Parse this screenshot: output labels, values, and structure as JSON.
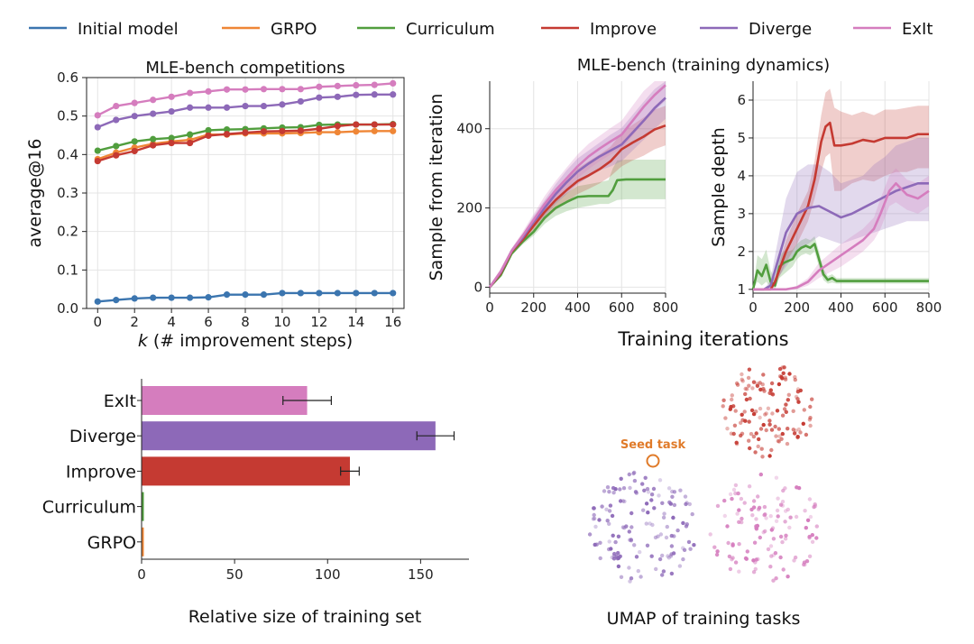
{
  "colors": {
    "initial": "#3b75af",
    "grpo": "#ef8636",
    "curriculum": "#519e3e",
    "improve": "#c53a32",
    "diverge": "#8d69b8",
    "exit": "#d57dbe"
  },
  "legend": [
    "Initial model",
    "GRPO",
    "Curriculum",
    "Improve",
    "Diverge",
    "ExIt"
  ],
  "chart_data": [
    {
      "type": "line",
      "title": "MLE-bench competitions",
      "xlabel": "k (# improvement steps)",
      "ylabel": "average@16",
      "xlim": [
        -0.6,
        16.6
      ],
      "ylim": [
        0.0,
        0.6
      ],
      "xticks": [
        "0",
        "2",
        "4",
        "6",
        "8",
        "10",
        "12",
        "14",
        "16"
      ],
      "yticks": [
        "0.0",
        "0.1",
        "0.2",
        "0.3",
        "0.4",
        "0.5",
        "0.6"
      ],
      "grid": true,
      "x": [
        0,
        1,
        2,
        3,
        4,
        5,
        6,
        7,
        8,
        9,
        10,
        11,
        12,
        13,
        14,
        15,
        16
      ],
      "series": [
        {
          "name": "Initial model",
          "key": "initial",
          "values": [
            0.018,
            0.022,
            0.026,
            0.028,
            0.028,
            0.028,
            0.029,
            0.036,
            0.036,
            0.036,
            0.04,
            0.04,
            0.04,
            0.04,
            0.04,
            0.04,
            0.04
          ]
        },
        {
          "name": "GRPO",
          "key": "grpo",
          "values": [
            0.388,
            0.405,
            0.418,
            0.428,
            0.434,
            0.438,
            0.452,
            0.452,
            0.455,
            0.455,
            0.455,
            0.456,
            0.458,
            0.458,
            0.46,
            0.461,
            0.461
          ]
        },
        {
          "name": "Curriculum",
          "key": "curriculum",
          "values": [
            0.41,
            0.422,
            0.434,
            0.44,
            0.443,
            0.452,
            0.463,
            0.465,
            0.466,
            0.468,
            0.47,
            0.471,
            0.477,
            0.478,
            0.478,
            0.478,
            0.479
          ]
        },
        {
          "name": "Improve",
          "key": "improve",
          "values": [
            0.383,
            0.398,
            0.409,
            0.424,
            0.43,
            0.43,
            0.449,
            0.453,
            0.457,
            0.46,
            0.461,
            0.462,
            0.467,
            0.474,
            0.478,
            0.478,
            0.478
          ]
        },
        {
          "name": "Diverge",
          "key": "diverge",
          "values": [
            0.471,
            0.49,
            0.5,
            0.506,
            0.512,
            0.522,
            0.522,
            0.522,
            0.526,
            0.526,
            0.53,
            0.538,
            0.548,
            0.55,
            0.555,
            0.556,
            0.556
          ]
        },
        {
          "name": "ExIt",
          "key": "exit",
          "values": [
            0.502,
            0.526,
            0.534,
            0.542,
            0.55,
            0.56,
            0.564,
            0.569,
            0.569,
            0.57,
            0.57,
            0.57,
            0.576,
            0.578,
            0.58,
            0.581,
            0.585
          ]
        }
      ]
    },
    {
      "type": "line",
      "title": "MLE-bench (training dynamics)",
      "xlabel": "Training iterations",
      "ylabel": "Sample from iteration",
      "xlim": [
        0,
        800
      ],
      "ylim": [
        -15,
        520
      ],
      "xticks": [
        0,
        200,
        400,
        600,
        800
      ],
      "yticks": [
        0,
        200,
        400
      ],
      "grid": true,
      "series": [
        {
          "name": "Curriculum",
          "key": "curriculum",
          "x": [
            0,
            50,
            100,
            150,
            200,
            250,
            300,
            350,
            400,
            450,
            500,
            540,
            560,
            580,
            620,
            700,
            800
          ],
          "y": [
            0,
            30,
            85,
            115,
            140,
            175,
            200,
            215,
            228,
            230,
            230,
            230,
            245,
            270,
            272,
            272,
            272
          ],
          "lo": [
            0,
            28,
            80,
            108,
            130,
            160,
            180,
            192,
            200,
            205,
            210,
            210,
            215,
            220,
            222,
            222,
            222
          ],
          "hi": [
            0,
            32,
            90,
            122,
            150,
            190,
            220,
            238,
            255,
            260,
            265,
            270,
            300,
            320,
            322,
            322,
            322
          ]
        },
        {
          "name": "Improve",
          "key": "improve",
          "x": [
            0,
            50,
            100,
            150,
            200,
            250,
            300,
            350,
            400,
            450,
            500,
            550,
            600,
            650,
            700,
            750,
            800
          ],
          "y": [
            0,
            35,
            90,
            120,
            155,
            190,
            220,
            245,
            268,
            282,
            298,
            318,
            348,
            365,
            380,
            398,
            408
          ],
          "lo": [
            0,
            32,
            84,
            110,
            140,
            170,
            195,
            215,
            235,
            248,
            262,
            280,
            305,
            320,
            332,
            348,
            358
          ],
          "hi": [
            0,
            38,
            96,
            130,
            170,
            210,
            245,
            275,
            300,
            318,
            335,
            355,
            390,
            410,
            428,
            448,
            458
          ]
        },
        {
          "name": "Diverge",
          "key": "diverge",
          "x": [
            0,
            50,
            100,
            150,
            200,
            250,
            300,
            350,
            400,
            450,
            500,
            550,
            600,
            650,
            700,
            750,
            800
          ],
          "y": [
            0,
            38,
            92,
            125,
            165,
            200,
            235,
            265,
            292,
            312,
            330,
            345,
            360,
            390,
            420,
            452,
            478
          ],
          "lo": [
            0,
            34,
            86,
            115,
            150,
            180,
            210,
            235,
            260,
            278,
            295,
            305,
            318,
            345,
            372,
            400,
            425
          ],
          "hi": [
            0,
            42,
            98,
            135,
            180,
            220,
            260,
            295,
            325,
            345,
            365,
            385,
            402,
            435,
            468,
            500,
            520
          ]
        },
        {
          "name": "ExIt",
          "key": "exit",
          "x": [
            0,
            50,
            100,
            150,
            200,
            250,
            300,
            350,
            400,
            450,
            500,
            550,
            600,
            650,
            700,
            750,
            800
          ],
          "y": [
            0,
            40,
            92,
            130,
            170,
            210,
            245,
            275,
            305,
            330,
            350,
            368,
            385,
            420,
            455,
            485,
            510
          ],
          "lo": [
            0,
            36,
            86,
            120,
            155,
            190,
            222,
            248,
            275,
            298,
            318,
            335,
            350,
            382,
            415,
            445,
            470
          ],
          "hi": [
            0,
            44,
            98,
            140,
            185,
            230,
            268,
            302,
            335,
            362,
            382,
            402,
            420,
            458,
            495,
            520,
            520
          ]
        }
      ]
    },
    {
      "type": "line",
      "title": "",
      "xlabel": "Training iterations",
      "ylabel": "Sample depth",
      "xlim": [
        0,
        800
      ],
      "ylim": [
        0.9,
        6.5
      ],
      "xticks": [
        0,
        200,
        400,
        600,
        800
      ],
      "yticks": [
        1,
        2,
        3,
        4,
        5,
        6
      ],
      "grid": true,
      "series": [
        {
          "name": "Curriculum",
          "key": "curriculum",
          "x": [
            0,
            20,
            40,
            60,
            80,
            100,
            120,
            140,
            160,
            180,
            200,
            220,
            240,
            260,
            280,
            300,
            320,
            340,
            360,
            380,
            400,
            500,
            600,
            700,
            800
          ],
          "y": [
            1.0,
            1.5,
            1.35,
            1.65,
            1.2,
            1.1,
            1.6,
            1.7,
            1.75,
            1.8,
            2.0,
            2.1,
            2.15,
            2.1,
            2.2,
            1.8,
            1.4,
            1.25,
            1.3,
            1.22,
            1.22,
            1.22,
            1.22,
            1.22,
            1.22
          ],
          "lo": [
            1.0,
            1.2,
            1.1,
            1.2,
            1.05,
            1.0,
            1.3,
            1.4,
            1.5,
            1.6,
            1.8,
            1.9,
            1.95,
            1.9,
            2.0,
            1.6,
            1.25,
            1.15,
            1.18,
            1.15,
            1.15,
            1.15,
            1.15,
            1.15,
            1.15
          ],
          "hi": [
            1.0,
            1.9,
            1.8,
            2.05,
            1.5,
            1.3,
            1.9,
            2.0,
            2.0,
            2.05,
            2.2,
            2.3,
            2.35,
            2.3,
            2.4,
            2.0,
            1.55,
            1.35,
            1.4,
            1.3,
            1.3,
            1.3,
            1.3,
            1.3,
            1.3
          ]
        },
        {
          "name": "Improve",
          "key": "improve",
          "x": [
            0,
            50,
            80,
            100,
            150,
            200,
            250,
            280,
            310,
            330,
            350,
            370,
            400,
            450,
            500,
            550,
            600,
            650,
            700,
            750,
            800
          ],
          "y": [
            1.0,
            1.0,
            1.0,
            1.2,
            2.0,
            2.6,
            3.2,
            3.9,
            4.9,
            5.3,
            5.4,
            4.8,
            4.8,
            4.85,
            4.95,
            4.9,
            5.0,
            5.0,
            5.0,
            5.1,
            5.1
          ],
          "lo": [
            1.0,
            1.0,
            1.0,
            1.1,
            1.7,
            2.2,
            2.8,
            3.4,
            4.1,
            4.5,
            4.6,
            3.6,
            3.6,
            3.8,
            3.9,
            3.85,
            4.0,
            4.1,
            4.1,
            4.2,
            4.2
          ],
          "hi": [
            1.0,
            1.0,
            1.0,
            1.3,
            2.3,
            3.0,
            3.6,
            4.4,
            5.6,
            6.2,
            6.3,
            5.8,
            5.7,
            5.6,
            5.7,
            5.6,
            5.75,
            5.75,
            5.8,
            5.85,
            5.85
          ]
        },
        {
          "name": "Diverge",
          "key": "diverge",
          "x": [
            0,
            50,
            80,
            100,
            150,
            200,
            250,
            300,
            350,
            400,
            450,
            500,
            550,
            600,
            650,
            700,
            750,
            800
          ],
          "y": [
            1.0,
            1.0,
            1.1,
            1.5,
            2.5,
            3.0,
            3.15,
            3.2,
            3.05,
            2.9,
            3.0,
            3.15,
            3.3,
            3.45,
            3.6,
            3.7,
            3.8,
            3.8
          ],
          "lo": [
            1.0,
            1.0,
            1.0,
            1.2,
            1.6,
            2.0,
            2.2,
            2.4,
            2.3,
            2.2,
            2.3,
            2.4,
            2.5,
            2.6,
            2.7,
            2.8,
            2.8,
            2.8
          ],
          "hi": [
            1.0,
            1.0,
            1.25,
            1.9,
            3.4,
            4.1,
            4.3,
            4.3,
            4.1,
            3.8,
            3.9,
            4.0,
            4.3,
            4.5,
            4.8,
            4.9,
            5.0,
            5.0
          ]
        },
        {
          "name": "ExIt",
          "key": "exit",
          "x": [
            0,
            100,
            150,
            200,
            250,
            300,
            350,
            400,
            450,
            500,
            550,
            580,
            600,
            620,
            650,
            700,
            750,
            800
          ],
          "y": [
            1.0,
            1.0,
            1.0,
            1.05,
            1.2,
            1.5,
            1.7,
            1.9,
            2.1,
            2.3,
            2.6,
            3.0,
            3.3,
            3.6,
            3.8,
            3.5,
            3.4,
            3.6
          ],
          "lo": [
            1.0,
            1.0,
            1.0,
            1.0,
            1.1,
            1.3,
            1.45,
            1.6,
            1.8,
            2.0,
            2.3,
            2.6,
            2.9,
            3.2,
            3.3,
            3.1,
            3.0,
            3.2
          ],
          "hi": [
            1.0,
            1.0,
            1.0,
            1.1,
            1.3,
            1.7,
            1.95,
            2.2,
            2.4,
            2.6,
            2.9,
            3.4,
            3.7,
            4.0,
            4.2,
            3.9,
            3.8,
            4.0
          ]
        }
      ]
    },
    {
      "type": "bar",
      "orientation": "horizontal",
      "xlabel": "Relative size of training set",
      "categories": [
        "ExIt",
        "Diverge",
        "Improve",
        "Curriculum",
        "GRPO"
      ],
      "keys": [
        "exit",
        "diverge",
        "improve",
        "curriculum",
        "grpo"
      ],
      "values": [
        89,
        158,
        112,
        1,
        1
      ],
      "errors": [
        13,
        10,
        5,
        0,
        0
      ],
      "xlim": [
        0,
        176
      ],
      "xticks": [
        0,
        50,
        100,
        150
      ]
    },
    {
      "type": "scatter",
      "title": "UMAP of training tasks",
      "annotation": "Seed task"
    }
  ]
}
